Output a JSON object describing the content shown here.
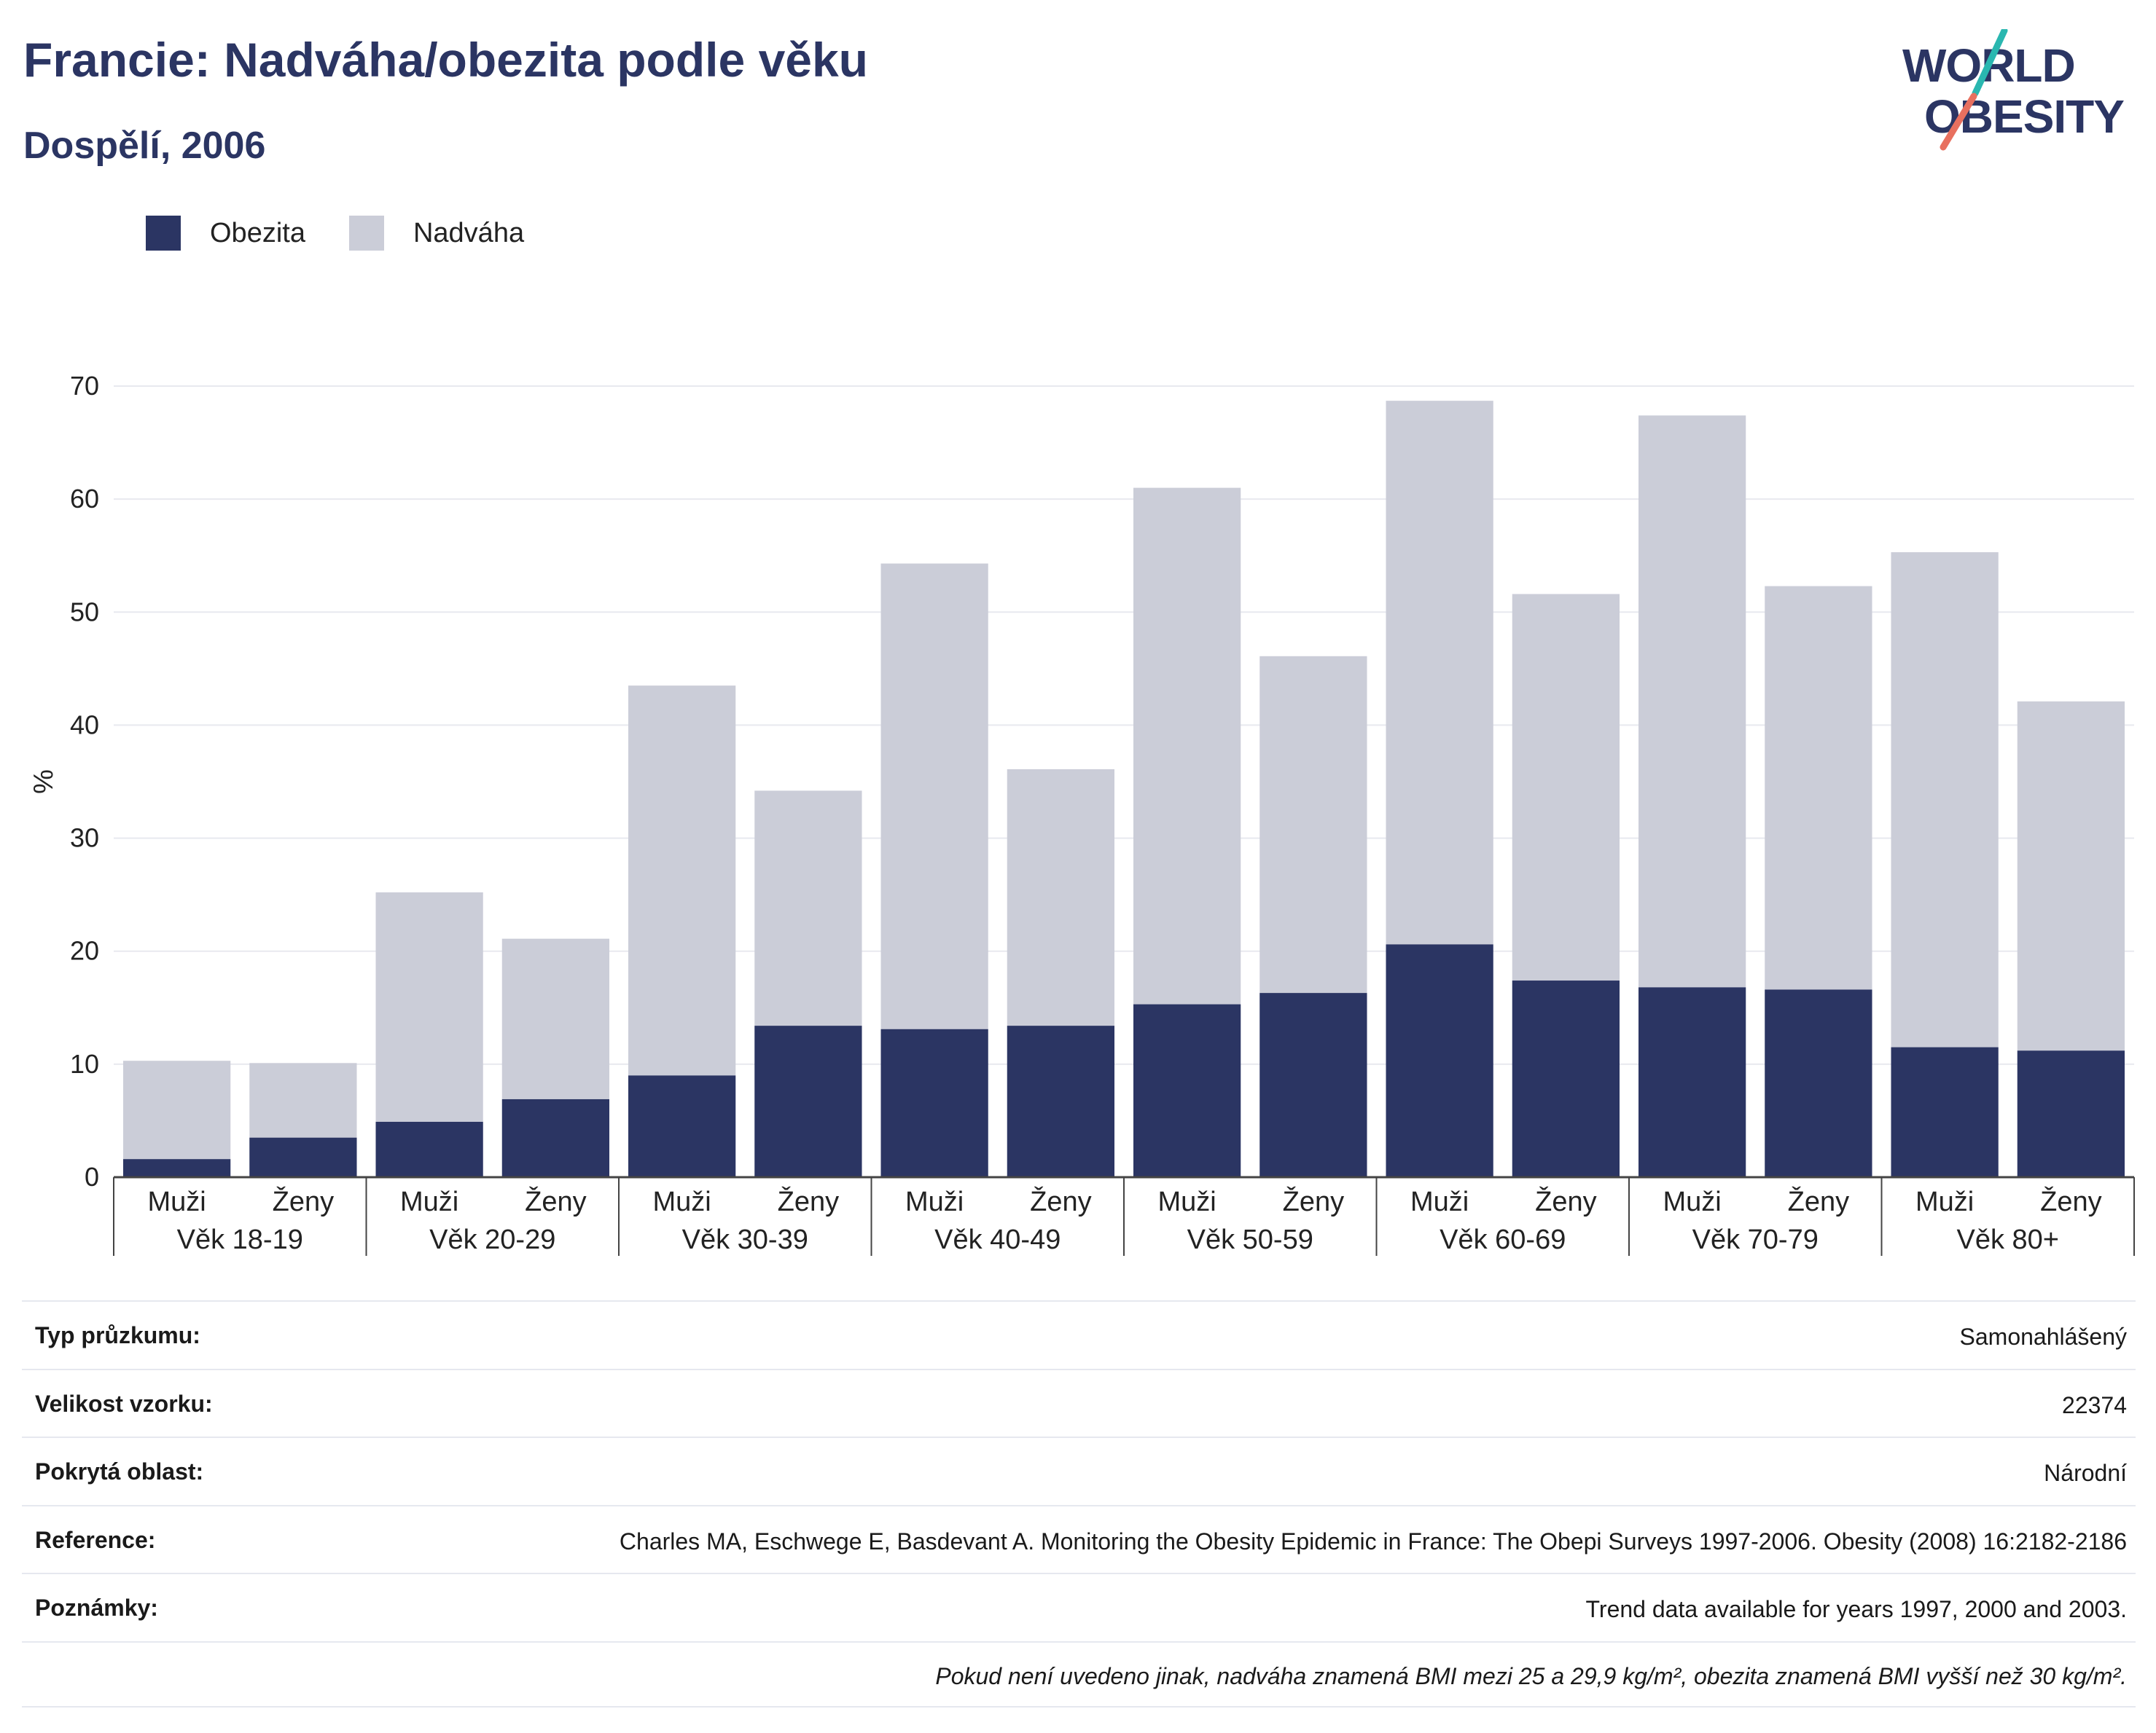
{
  "header": {
    "title": "Francie: Nadváha/obezita podle věku",
    "subtitle": "Dospělí, 2006"
  },
  "logo": {
    "line1": "WORLD",
    "line2": "OBESITY"
  },
  "colors": {
    "obesity": "#2b3563",
    "overweight": "#cbcdd8",
    "text_dark": "#2b3563",
    "logo_teal": "#2ab7b0",
    "logo_coral": "#e8705f"
  },
  "chart_data": {
    "type": "bar",
    "stacked": true,
    "ylabel": "%",
    "ylim": [
      0,
      70
    ],
    "yticks": [
      0,
      10,
      20,
      30,
      40,
      50,
      60,
      70
    ],
    "grid": true,
    "legend_position": "top-left",
    "groups": [
      "Věk 18-19",
      "Věk 20-29",
      "Věk 30-39",
      "Věk 40-49",
      "Věk 50-59",
      "Věk 60-69",
      "Věk 70-79",
      "Věk 80+"
    ],
    "sexes": [
      "Muži",
      "Ženy"
    ],
    "categories": [
      "Muži",
      "Ženy",
      "Muži",
      "Ženy",
      "Muži",
      "Ženy",
      "Muži",
      "Ženy",
      "Muži",
      "Ženy",
      "Muži",
      "Ženy",
      "Muži",
      "Ženy",
      "Muži",
      "Ženy"
    ],
    "series": [
      {
        "name": "Obezita",
        "values": [
          1.6,
          3.5,
          4.9,
          6.9,
          9.0,
          13.4,
          13.1,
          13.4,
          15.3,
          16.3,
          20.6,
          17.4,
          16.8,
          16.6,
          11.5,
          11.2
        ]
      },
      {
        "name": "Nadváha",
        "values": [
          8.7,
          6.6,
          20.3,
          14.2,
          34.5,
          20.8,
          41.2,
          22.7,
          45.7,
          29.8,
          48.1,
          34.2,
          50.6,
          35.7,
          43.8,
          30.9
        ]
      }
    ]
  },
  "info": [
    {
      "key": "Typ průzkumu:",
      "value": "Samonahlášený"
    },
    {
      "key": "Velikost vzorku:",
      "value": "22374"
    },
    {
      "key": "Pokrytá oblast:",
      "value": "Národní"
    },
    {
      "key": "Reference:",
      "value": "Charles MA, Eschwege E, Basdevant A. Monitoring the Obesity Epidemic in France: The Obepi Surveys 1997-2006. Obesity (2008) 16:2182-2186"
    },
    {
      "key": "Poznámky:",
      "value": "Trend data available for years 1997, 2000 and 2003."
    }
  ],
  "footnote": "Pokud není uvedeno jinak, nadváha znamená BMI mezi 25 a 29,9 kg/m², obezita znamená BMI vyšší než 30 kg/m²."
}
